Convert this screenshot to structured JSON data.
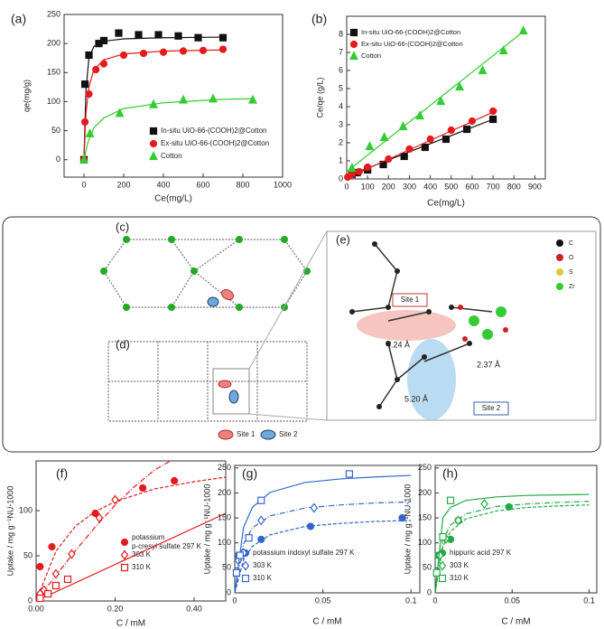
{
  "chart_data": [
    {
      "type": "scatter",
      "label": "(a)",
      "x_label": "Ce(mg/L)",
      "y_label": "qe(mg/g)",
      "xlim": [
        -100,
        1000
      ],
      "xticks": [
        0,
        200,
        400,
        600,
        800,
        1000
      ],
      "ylim": [
        -30,
        250
      ],
      "yticks": [
        0,
        50,
        100,
        150,
        200,
        250
      ],
      "legend": "lower right",
      "series": [
        {
          "name": "In-situ UiO-66-(COOH)2@Cotton",
          "color": "#111111",
          "marker": "square",
          "filled": true,
          "x": [
            0,
            5,
            25,
            75,
            100,
            175,
            275,
            375,
            475,
            575,
            700
          ],
          "values": [
            0,
            130,
            180,
            200,
            205,
            218,
            215,
            215,
            213,
            210,
            210
          ],
          "fit_x": [
            0,
            10,
            25,
            50,
            100,
            200,
            400,
            700
          ],
          "fit_values": [
            0,
            120,
            175,
            195,
            204,
            208,
            210,
            211
          ]
        },
        {
          "name": "Ex-situ UiO-66-(COOH)2@Cotton",
          "color": "#e41a1c",
          "marker": "circle",
          "filled": true,
          "x": [
            0,
            5,
            25,
            60,
            100,
            200,
            300,
            400,
            500,
            600,
            700
          ],
          "values": [
            0,
            65,
            113,
            155,
            165,
            180,
            183,
            185,
            187,
            188,
            190
          ],
          "fit_x": [
            0,
            10,
            25,
            50,
            100,
            200,
            400,
            700
          ],
          "fit_values": [
            0,
            80,
            125,
            155,
            172,
            182,
            187,
            189
          ]
        },
        {
          "name": "Cotton",
          "color": "#33cc33",
          "marker": "triangle",
          "filled": true,
          "x": [
            0,
            30,
            180,
            350,
            500,
            650,
            850
          ],
          "values": [
            0,
            45,
            80,
            95,
            103,
            105,
            103
          ],
          "fit_x": [
            0,
            20,
            50,
            100,
            200,
            400,
            700,
            850
          ],
          "fit_values": [
            0,
            30,
            55,
            72,
            88,
            98,
            104,
            105
          ]
        }
      ]
    },
    {
      "type": "scatter",
      "label": "(b)",
      "x_label": "Ce(mg/L)",
      "y_label": "Ce/qe (g/L)",
      "xlim": [
        0,
        950
      ],
      "xticks": [
        0,
        100,
        200,
        300,
        400,
        500,
        600,
        700,
        800,
        900
      ],
      "ylim": [
        0,
        9
      ],
      "yticks": [
        0,
        1,
        2,
        3,
        4,
        5,
        6,
        7,
        8
      ],
      "legend": "upper left",
      "series": [
        {
          "name": "In-situ UiO-66-(COOH)2@Cotton",
          "color": "#111111",
          "marker": "square",
          "filled": true,
          "x": [
            25,
            50,
            100,
            175,
            275,
            375,
            475,
            575,
            700
          ],
          "values": [
            0.25,
            0.35,
            0.5,
            0.8,
            1.25,
            1.75,
            2.2,
            2.75,
            3.3
          ],
          "fit_x": [
            0,
            700
          ],
          "fit_values": [
            0.15,
            3.3
          ]
        },
        {
          "name": "Ex-situ UiO-66-(COOH)2@Cotton",
          "color": "#e41a1c",
          "marker": "circle",
          "filled": true,
          "x": [
            5,
            25,
            60,
            100,
            200,
            300,
            400,
            500,
            600,
            700
          ],
          "values": [
            0.1,
            0.25,
            0.4,
            0.65,
            1.1,
            1.65,
            2.2,
            2.7,
            3.2,
            3.75
          ],
          "fit_x": [
            0,
            720
          ],
          "fit_values": [
            0.05,
            3.8
          ]
        },
        {
          "name": "Cotton",
          "color": "#33cc33",
          "marker": "triangle",
          "filled": true,
          "x": [
            25,
            110,
            180,
            270,
            350,
            450,
            540,
            650,
            750,
            845
          ],
          "values": [
            0.6,
            1.8,
            2.3,
            2.9,
            3.5,
            4.3,
            5.1,
            6.0,
            7.1,
            8.2
          ],
          "fit_x": [
            0,
            850
          ],
          "fit_values": [
            0.4,
            8.2
          ]
        }
      ]
    },
    {
      "type": "scatter",
      "label": "(f)",
      "x_label": "C / mM",
      "y_label": "Uptake / mg g⁻¹NU-1000",
      "xlim": [
        0,
        0.48
      ],
      "xticks": [
        {
          "value": 0,
          "label": "0.00"
        },
        {
          "value": 0.2,
          "label": "0.20"
        },
        {
          "value": 0.4,
          "label": "0.40"
        }
      ],
      "ylim": [
        0,
        155
      ],
      "yticks": [
        0,
        50,
        100
      ],
      "legend": "lower right",
      "series": [
        {
          "name": "potassium p-cresyl sulfate 297 K",
          "color": "#e41a1c",
          "marker": "circle",
          "filled": true,
          "dash": "4 2",
          "x": [
            0.01,
            0.04,
            0.15,
            0.27,
            0.35
          ],
          "values": [
            38,
            60,
            97,
            125,
            133
          ],
          "fit_x": [
            0,
            0.05,
            0.1,
            0.15,
            0.2,
            0.3,
            0.4,
            0.48
          ],
          "fit_values": [
            0,
            55,
            83,
            99,
            110,
            124,
            132,
            137
          ]
        },
        {
          "name": "303 K",
          "color": "#e41a1c",
          "marker": "diamond",
          "filled": false,
          "dash": "6 2 1 2",
          "x": [
            0.01,
            0.02,
            0.05,
            0.09,
            0.16,
            0.2
          ],
          "values": [
            8,
            12,
            30,
            52,
            92,
            112
          ],
          "fit_x": [
            0,
            0.05,
            0.1,
            0.15,
            0.2,
            0.25,
            0.3,
            0.34
          ],
          "fit_values": [
            0,
            28,
            56,
            82,
            106,
            127,
            145,
            155
          ]
        },
        {
          "name": "310 K",
          "color": "#e41a1c",
          "marker": "square",
          "filled": false,
          "dash": "none",
          "x": [
            0.01,
            0.03,
            0.05,
            0.08
          ],
          "values": [
            3,
            8,
            17,
            24
          ],
          "fit_x": [
            0,
            0.48
          ],
          "fit_values": [
            0,
            97
          ]
        }
      ]
    },
    {
      "type": "scatter",
      "label": "(g)",
      "x_label": "C / mM",
      "y_label": "Uptake / mg g⁻¹NU-1000",
      "xlim": [
        0,
        0.105
      ],
      "xticks": [
        0,
        0.05,
        0.1
      ],
      "ylim": [
        0,
        255
      ],
      "yticks": [
        0,
        50,
        100,
        150,
        200,
        250
      ],
      "legend": "lower center",
      "series": [
        {
          "name": "potassium indoxyl sulfate 297 K",
          "color": "#3366cc",
          "marker": "circle",
          "filled": true,
          "dash": "4 2",
          "x": [
            0.002,
            0.005,
            0.015,
            0.043,
            0.095
          ],
          "values": [
            75,
            80,
            107,
            133,
            150
          ],
          "fit_x": [
            0,
            0.005,
            0.01,
            0.02,
            0.04,
            0.06,
            0.08,
            0.1
          ],
          "fit_values": [
            0,
            66,
            93,
            116,
            133,
            139,
            143,
            145
          ]
        },
        {
          "name": "303 K",
          "color": "#3366cc",
          "marker": "diamond",
          "filled": false,
          "dash": "6 2 1 2",
          "x": [
            0.002,
            0.005,
            0.015,
            0.045
          ],
          "values": [
            65,
            80,
            145,
            170
          ],
          "fit_x": [
            0,
            0.005,
            0.01,
            0.02,
            0.04,
            0.06,
            0.08,
            0.1
          ],
          "fit_values": [
            0,
            98,
            130,
            154,
            170,
            176,
            180,
            182
          ]
        },
        {
          "name": "310 K",
          "color": "#3366cc",
          "marker": "square",
          "filled": false,
          "dash": "none",
          "x": [
            0.001,
            0.003,
            0.008,
            0.015,
            0.065
          ],
          "values": [
            40,
            75,
            110,
            185,
            238
          ],
          "fit_x": [
            0,
            0.005,
            0.01,
            0.02,
            0.04,
            0.06,
            0.08,
            0.1
          ],
          "fit_values": [
            0,
            131,
            171,
            201,
            221,
            228,
            232,
            235
          ]
        }
      ]
    },
    {
      "type": "scatter",
      "label": "(h)",
      "x_label": "C / mM",
      "y_label": "Uptake / mg g⁻¹NU-1000",
      "xlim": [
        0,
        0.105
      ],
      "xticks": [
        0,
        0.05,
        0.1
      ],
      "ylim": [
        0,
        255
      ],
      "yticks": [
        0,
        50,
        100,
        150,
        200,
        250
      ],
      "legend": "lower center",
      "series": [
        {
          "name": "hippuric acid 297 K",
          "color": "#22aa44",
          "marker": "circle",
          "filled": true,
          "dash": "4 2",
          "x": [
            0.002,
            0.01,
            0.015,
            0.048
          ],
          "values": [
            75,
            107,
            145,
            172
          ],
          "fit_x": [
            0,
            0.005,
            0.01,
            0.02,
            0.04,
            0.06,
            0.08,
            0.1
          ],
          "fit_values": [
            0,
            93,
            123,
            148,
            164,
            171,
            174,
            176
          ]
        },
        {
          "name": "303 K",
          "color": "#22aa44",
          "marker": "diamond",
          "filled": false,
          "dash": "6 2 1 2",
          "x": [
            0.003,
            0.007,
            0.015,
            0.032
          ],
          "values": [
            75,
            108,
            145,
            178
          ],
          "fit_x": [
            0,
            0.005,
            0.01,
            0.02,
            0.04,
            0.06,
            0.08,
            0.1
          ],
          "fit_values": [
            0,
            106,
            136,
            158,
            173,
            178,
            181,
            183
          ]
        },
        {
          "name": "310 K",
          "color": "#22aa44",
          "marker": "square",
          "filled": false,
          "dash": "none",
          "x": [
            0.001,
            0.005,
            0.01
          ],
          "values": [
            40,
            112,
            185
          ],
          "fit_x": [
            0,
            0.005,
            0.01,
            0.02,
            0.04,
            0.06,
            0.08,
            0.1
          ],
          "fit_values": [
            0,
            150,
            171,
            185,
            192,
            195,
            196,
            197
          ]
        }
      ]
    }
  ],
  "diagram": {
    "panels": [
      "(c)",
      "(d)",
      "(e)"
    ],
    "site_labels": [
      "Site 1",
      "Site 2"
    ],
    "distances": [
      "4.24 Å",
      "2.37 Å",
      "5.20 Å"
    ],
    "element_legend": [
      "C",
      "O",
      "S",
      "Zr"
    ],
    "site_legend": [
      "Site 1",
      "Site 2"
    ]
  }
}
